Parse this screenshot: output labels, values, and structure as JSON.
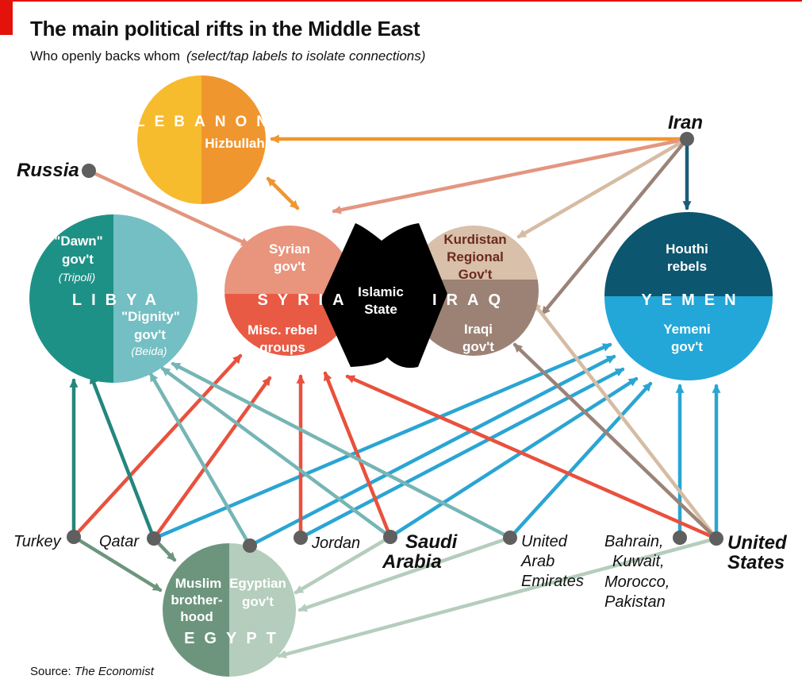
{
  "header": {
    "title": "The main political rifts in the Middle East",
    "subtitle": "Who openly backs whom",
    "hint": "(select/tap labels to isolate connections)"
  },
  "source": {
    "label": "Source:",
    "publication": "The Economist"
  },
  "colors": {
    "accent_red": "#e3120b",
    "lebanon_left": "#f7bb2e",
    "lebanon_right": "#f0962e",
    "libya_left": "#1e9187",
    "libya_right": "#73bfc3",
    "syria_top": "#e9947c",
    "syria_bottom": "#e95a44",
    "islamic_state": "#000000",
    "iraq_top": "#d9c0aa",
    "iraq_bottom": "#9c8275",
    "yemen_top": "#0c5670",
    "yemen_bottom": "#22a7d8",
    "egypt_left": "#6d957e",
    "egypt_right": "#b5cdbc",
    "node": "#5f5f5f",
    "link_orange": "#f0962e",
    "link_salmon": "#e3967f",
    "link_tan": "#d6bca3",
    "link_brown": "#9a8378",
    "link_navy": "#1b5c7a",
    "link_red": "#e8513d",
    "link_blue": "#2aa5d3",
    "link_teal": "#24867e",
    "link_tealgrey": "#76b5b5",
    "link_egypt": "#6d957e",
    "link_egypt_light": "#b5cdbc"
  },
  "countries": {
    "lebanon": {
      "name": "LEBANON",
      "factions": [
        "Hizbullah"
      ]
    },
    "libya": {
      "name": "LIBYA",
      "dawn": {
        "line1": "\"Dawn\"",
        "line2": "gov't",
        "place": "(Tripoli)"
      },
      "dignity": {
        "line1": "\"Dignity\"",
        "line2": "gov't",
        "place": "(Beida)"
      }
    },
    "syria": {
      "name": "SYRIA",
      "gov": {
        "line1": "Syrian",
        "line2": "gov't"
      },
      "rebels": {
        "line1": "Misc. rebel",
        "line2": "groups"
      }
    },
    "islamic_state": {
      "line1": "Islamic",
      "line2": "State"
    },
    "iraq": {
      "name": "IRAQ",
      "krg": {
        "line1": "Kurdistan",
        "line2": "Regional",
        "line3": "Gov't"
      },
      "gov": {
        "line1": "Iraqi",
        "line2": "gov't"
      }
    },
    "yemen": {
      "name": "YEMEN",
      "houthi": {
        "line1": "Houthi",
        "line2": "rebels"
      },
      "gov": {
        "line1": "Yemeni",
        "line2": "gov't"
      }
    },
    "egypt": {
      "name": "EGYPT",
      "mb": {
        "line1": "Muslim",
        "line2": "brother-",
        "line3": "hood"
      },
      "gov": {
        "line1": "Egyptian",
        "line2": "gov't"
      }
    }
  },
  "actors": {
    "iran": "Iran",
    "russia": "Russia",
    "turkey": "Turkey",
    "qatar": "Qatar",
    "jordan": "Jordan",
    "saudi": {
      "line1": "Saudi",
      "line2": "Arabia"
    },
    "uae": {
      "line1": "United",
      "line2": "Arab",
      "line3": "Emirates"
    },
    "bahrain": {
      "line1": "Bahrain,",
      "line2": "Kuwait,",
      "line3": "Morocco,",
      "line4": "Pakistan"
    },
    "us": {
      "line1": "United",
      "line2": "States"
    }
  },
  "connections": [
    {
      "from": "Iran",
      "to": "Hizbullah"
    },
    {
      "from": "Iran",
      "to": "Syrian gov't"
    },
    {
      "from": "Iran",
      "to": "Kurdistan Regional Gov't"
    },
    {
      "from": "Iran",
      "to": "Iraqi gov't"
    },
    {
      "from": "Iran",
      "to": "Houthi rebels"
    },
    {
      "from": "Russia",
      "to": "Syrian gov't"
    },
    {
      "from": "Hizbullah",
      "to": "Syrian gov't"
    },
    {
      "from": "Turkey",
      "to": "\"Dawn\" gov't"
    },
    {
      "from": "Turkey",
      "to": "Misc. rebel groups"
    },
    {
      "from": "Turkey",
      "to": "Muslim brotherhood"
    },
    {
      "from": "Qatar",
      "to": "\"Dawn\" gov't"
    },
    {
      "from": "Qatar",
      "to": "Misc. rebel groups"
    },
    {
      "from": "Qatar",
      "to": "Muslim brotherhood"
    },
    {
      "from": "Qatar",
      "to": "Yemeni gov't"
    },
    {
      "from": "Egyptian gov't",
      "to": "\"Dignity\" gov't"
    },
    {
      "from": "Egyptian gov't",
      "to": "Yemeni gov't"
    },
    {
      "from": "Jordan",
      "to": "Misc. rebel groups"
    },
    {
      "from": "Jordan",
      "to": "Yemeni gov't"
    },
    {
      "from": "Saudi Arabia",
      "to": "Misc. rebel groups"
    },
    {
      "from": "Saudi Arabia",
      "to": "\"Dignity\" gov't"
    },
    {
      "from": "Saudi Arabia",
      "to": "Yemeni gov't"
    },
    {
      "from": "Saudi Arabia",
      "to": "Egyptian gov't"
    },
    {
      "from": "United Arab Emirates",
      "to": "\"Dignity\" gov't"
    },
    {
      "from": "United Arab Emirates",
      "to": "Yemeni gov't"
    },
    {
      "from": "United Arab Emirates",
      "to": "Egyptian gov't"
    },
    {
      "from": "Bahrain, Kuwait, Morocco, Pakistan",
      "to": "Yemeni gov't"
    },
    {
      "from": "United States",
      "to": "Yemeni gov't"
    },
    {
      "from": "United States",
      "to": "Misc. rebel groups"
    },
    {
      "from": "United States",
      "to": "Kurdistan Regional Gov't"
    },
    {
      "from": "United States",
      "to": "Iraqi gov't"
    },
    {
      "from": "United States",
      "to": "Egyptian gov't"
    }
  ]
}
